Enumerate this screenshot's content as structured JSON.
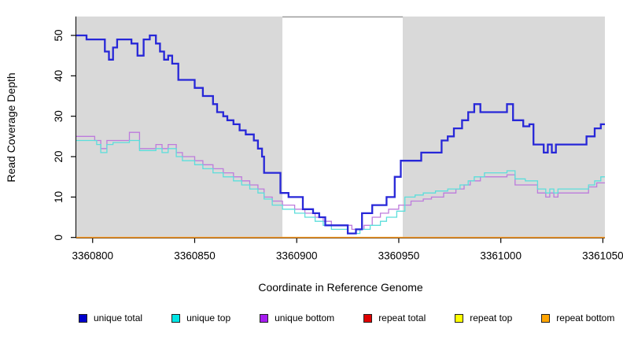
{
  "figure": {
    "background": "#ffffff"
  },
  "x_axis": {
    "label": "Coordinate in Reference Genome",
    "ticks": [
      3360800,
      3360850,
      3360900,
      3360950,
      3361000,
      3361050
    ],
    "range": [
      3360792,
      3361051
    ]
  },
  "y_axis": {
    "label": "Read Coverage Depth",
    "ticks": [
      0,
      10,
      20,
      30,
      40,
      50
    ],
    "range": [
      0,
      50
    ]
  },
  "shading": {
    "color": "#d9d9d9",
    "regions": [
      [
        3360792,
        3360893
      ],
      [
        3360952,
        3361051
      ]
    ],
    "unshaded_band": [
      3360893,
      3360952
    ],
    "band_border_color": "#9a9a9a"
  },
  "legend": {
    "items": [
      {
        "label": "unique total",
        "color": "#0000cc"
      },
      {
        "label": "unique top",
        "color": "#00e5e5"
      },
      {
        "label": "unique bottom",
        "color": "#a61cf0"
      },
      {
        "label": "repeat total",
        "color": "#df0000"
      },
      {
        "label": "repeat top",
        "color": "#ffff00"
      },
      {
        "label": "repeat bottom",
        "color": "#ffa500"
      }
    ]
  },
  "chart_data": {
    "type": "step-line",
    "title": "",
    "xlabel": "Coordinate in Reference Genome",
    "ylabel": "Read Coverage Depth",
    "xlim": [
      3360792,
      3361051
    ],
    "ylim": [
      0,
      52
    ],
    "grid": false,
    "legend_position": "bottom",
    "series": [
      {
        "name": "repeat total",
        "color": "#df0000",
        "width": 1.3,
        "points": [
          [
            3360792,
            0
          ]
        ]
      },
      {
        "name": "repeat top",
        "color": "#ffff00",
        "width": 1.3,
        "points": [
          [
            3360792,
            0
          ]
        ]
      },
      {
        "name": "repeat bottom",
        "color": "#ffa02c",
        "width": 1.6,
        "points": [
          [
            3360792,
            0
          ]
        ]
      },
      {
        "name": "unique bottom",
        "color": "#bd7bdc",
        "width": 1.3,
        "points": [
          [
            3360792,
            25
          ],
          [
            3360801,
            24
          ],
          [
            3360804,
            22
          ],
          [
            3360807,
            24
          ],
          [
            3360818,
            26
          ],
          [
            3360823,
            22
          ],
          [
            3360831,
            23
          ],
          [
            3360834,
            22
          ],
          [
            3360837,
            23
          ],
          [
            3360841,
            21
          ],
          [
            3360844,
            20
          ],
          [
            3360850,
            19
          ],
          [
            3360854,
            18
          ],
          [
            3360859,
            17
          ],
          [
            3360864,
            16
          ],
          [
            3360869,
            15
          ],
          [
            3360873,
            14
          ],
          [
            3360877,
            13
          ],
          [
            3360881,
            12
          ],
          [
            3360884,
            10
          ],
          [
            3360888,
            9
          ],
          [
            3360893,
            8
          ],
          [
            3360899,
            7
          ],
          [
            3360904,
            6
          ],
          [
            3360909,
            5
          ],
          [
            3360913,
            4
          ],
          [
            3360917,
            3
          ],
          [
            3360927,
            2
          ],
          [
            3360933,
            3
          ],
          [
            3360937,
            5
          ],
          [
            3360941,
            6
          ],
          [
            3360945,
            7
          ],
          [
            3360950,
            8
          ],
          [
            3360956,
            9
          ],
          [
            3360962,
            9.5
          ],
          [
            3360966,
            10
          ],
          [
            3360972,
            11
          ],
          [
            3360978,
            12
          ],
          [
            3360982,
            13
          ],
          [
            3360985,
            14
          ],
          [
            3360990,
            15
          ],
          [
            3361003,
            15.5
          ],
          [
            3361007,
            13
          ],
          [
            3361018,
            11
          ],
          [
            3361022,
            10
          ],
          [
            3361024,
            11
          ],
          [
            3361026,
            10
          ],
          [
            3361028,
            11
          ],
          [
            3361043,
            12.5
          ],
          [
            3361047,
            13.5
          ]
        ]
      },
      {
        "name": "unique top",
        "color": "#5cdedb",
        "width": 1.3,
        "points": [
          [
            3360792,
            24
          ],
          [
            3360802,
            23
          ],
          [
            3360804,
            21
          ],
          [
            3360807,
            23
          ],
          [
            3360810,
            23.5
          ],
          [
            3360818,
            24
          ],
          [
            3360823,
            21.5
          ],
          [
            3360831,
            22
          ],
          [
            3360834,
            21
          ],
          [
            3360837,
            22
          ],
          [
            3360841,
            20
          ],
          [
            3360844,
            19
          ],
          [
            3360850,
            18
          ],
          [
            3360854,
            17
          ],
          [
            3360859,
            16
          ],
          [
            3360864,
            15
          ],
          [
            3360869,
            14
          ],
          [
            3360873,
            13
          ],
          [
            3360877,
            12
          ],
          [
            3360881,
            11
          ],
          [
            3360884,
            9.5
          ],
          [
            3360888,
            8
          ],
          [
            3360893,
            7
          ],
          [
            3360899,
            6
          ],
          [
            3360904,
            5
          ],
          [
            3360909,
            4
          ],
          [
            3360913,
            3
          ],
          [
            3360917,
            2
          ],
          [
            3360925,
            1
          ],
          [
            3360931,
            2
          ],
          [
            3360936,
            3
          ],
          [
            3360941,
            4
          ],
          [
            3360944,
            5
          ],
          [
            3360949,
            6.5
          ],
          [
            3360953,
            10
          ],
          [
            3360958,
            10.5
          ],
          [
            3360962,
            11
          ],
          [
            3360968,
            11.5
          ],
          [
            3360974,
            12
          ],
          [
            3360980,
            13
          ],
          [
            3360984,
            14
          ],
          [
            3360987,
            15
          ],
          [
            3360992,
            16
          ],
          [
            3361003,
            16.5
          ],
          [
            3361007,
            14.5
          ],
          [
            3361012,
            14
          ],
          [
            3361018,
            12
          ],
          [
            3361022,
            11
          ],
          [
            3361024,
            12
          ],
          [
            3361026,
            11
          ],
          [
            3361028,
            12
          ],
          [
            3361043,
            13
          ],
          [
            3361046,
            14
          ],
          [
            3361049,
            15
          ]
        ]
      },
      {
        "name": "unique total",
        "color": "#2727d8",
        "width": 2.3,
        "points": [
          [
            3360792,
            50
          ],
          [
            3360797,
            49
          ],
          [
            3360806,
            46
          ],
          [
            3360808,
            44
          ],
          [
            3360810,
            47
          ],
          [
            3360812,
            49
          ],
          [
            3360819,
            48
          ],
          [
            3360822,
            45
          ],
          [
            3360825,
            49
          ],
          [
            3360828,
            50
          ],
          [
            3360831,
            48
          ],
          [
            3360833,
            46
          ],
          [
            3360835,
            44
          ],
          [
            3360837,
            45
          ],
          [
            3360839,
            43
          ],
          [
            3360842,
            39
          ],
          [
            3360850,
            37
          ],
          [
            3360854,
            35
          ],
          [
            3360859,
            33
          ],
          [
            3360861,
            31
          ],
          [
            3360864,
            30
          ],
          [
            3360866,
            29
          ],
          [
            3360869,
            28
          ],
          [
            3360872,
            26.5
          ],
          [
            3360875,
            25.5
          ],
          [
            3360879,
            24
          ],
          [
            3360881,
            22
          ],
          [
            3360883,
            20
          ],
          [
            3360884,
            16
          ],
          [
            3360892,
            11
          ],
          [
            3360896,
            10
          ],
          [
            3360903,
            7
          ],
          [
            3360908,
            6
          ],
          [
            3360911,
            5
          ],
          [
            3360914,
            3
          ],
          [
            3360925,
            1
          ],
          [
            3360929,
            2
          ],
          [
            3360932,
            6
          ],
          [
            3360937,
            8
          ],
          [
            3360944,
            10
          ],
          [
            3360948,
            15
          ],
          [
            3360951,
            19
          ],
          [
            3360961,
            21
          ],
          [
            3360971,
            24
          ],
          [
            3360974,
            25
          ],
          [
            3360977,
            27
          ],
          [
            3360981,
            29
          ],
          [
            3360984,
            31
          ],
          [
            3360987,
            33
          ],
          [
            3360990,
            31
          ],
          [
            3361003,
            33
          ],
          [
            3361006,
            29
          ],
          [
            3361011,
            27.5
          ],
          [
            3361014,
            28
          ],
          [
            3361016,
            23
          ],
          [
            3361021,
            21
          ],
          [
            3361023,
            23
          ],
          [
            3361025,
            21
          ],
          [
            3361027,
            23
          ],
          [
            3361042,
            25
          ],
          [
            3361046,
            27
          ],
          [
            3361049,
            28
          ]
        ]
      }
    ]
  }
}
